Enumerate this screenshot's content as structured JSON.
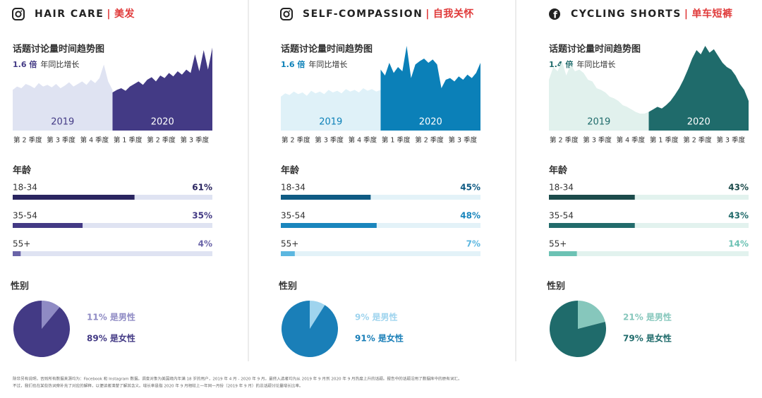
{
  "panels": [
    {
      "title": "HAIR CARE",
      "title_cn": "美发",
      "trend": {
        "type": "area",
        "title": "话题讨论量时间趋势图",
        "growth": "1.6 倍",
        "growth_label": "年同比增长",
        "periods": [
          "2019",
          "2020"
        ],
        "quarters": [
          "第 2 季度",
          "第 3 季度",
          "第 4 季度",
          "第 1 季度",
          "第 2 季度",
          "第 3 季度"
        ],
        "series": [
          {
            "color": "#dfe3f2",
            "values": [
              48,
              52,
              50,
              55,
              53,
              50,
              56,
              52,
              54,
              51,
              55,
              50,
              53,
              57,
              52,
              55,
              58,
              54,
              60,
              56,
              62,
              78,
              58,
              48
            ]
          },
          {
            "color": "#433a85",
            "values": [
              45,
              48,
              50,
              47,
              52,
              55,
              58,
              54,
              60,
              63,
              58,
              65,
              62,
              68,
              64,
              70,
              66,
              72,
              68,
              90,
              70,
              95,
              72,
              98
            ]
          }
        ]
      },
      "age": {
        "type": "bar",
        "title": "年龄",
        "categories": [
          "18-34",
          "35-54",
          "55+"
        ],
        "values": [
          61,
          35,
          4
        ],
        "value_labels": [
          "61%",
          "35%",
          "4%"
        ],
        "colors": [
          "#2a2560",
          "#433a85",
          "#6a64a8"
        ],
        "track": "#dfe3f2"
      },
      "gender": {
        "type": "pie",
        "title": "性别",
        "values": [
          11,
          89
        ],
        "value_labels": [
          "11% 是男性",
          "89% 是女性"
        ],
        "colors": [
          "#8f8bc4",
          "#433a85"
        ]
      }
    },
    {
      "title": "SELF-COMPASSION",
      "title_cn": "自我关怀",
      "trend": {
        "type": "area",
        "title": "话题讨论量时间趋势图",
        "growth": "1.6 倍",
        "growth_label": "年同比增长",
        "periods": [
          "2019",
          "2020"
        ],
        "quarters": [
          "第 2 季度",
          "第 3 季度",
          "第 4 季度",
          "第 1 季度",
          "第 2 季度",
          "第 3 季度"
        ],
        "series": [
          {
            "color": "#dff1f8",
            "values": [
              40,
              44,
              42,
              46,
              43,
              45,
              41,
              47,
              44,
              46,
              43,
              48,
              45,
              47,
              44,
              49,
              46,
              48,
              45,
              50,
              47,
              49,
              46,
              48
            ]
          },
          {
            "color": "#0b80b8",
            "values": [
              72,
              65,
              80,
              68,
              75,
              70,
              100,
              62,
              78,
              82,
              85,
              80,
              84,
              78,
              50,
              60,
              62,
              58,
              64,
              60,
              66,
              62,
              68,
              80
            ]
          }
        ]
      },
      "age": {
        "type": "bar",
        "title": "年龄",
        "categories": [
          "18-34",
          "35-54",
          "55+"
        ],
        "values": [
          45,
          48,
          7
        ],
        "value_labels": [
          "45%",
          "48%",
          "7%"
        ],
        "colors": [
          "#0f5b84",
          "#1a86bd",
          "#5cb7e0"
        ],
        "track": "#e3f2f8"
      },
      "gender": {
        "type": "pie",
        "title": "性别",
        "values": [
          9,
          91
        ],
        "value_labels": [
          "9% 是男性",
          "91% 是女性"
        ],
        "colors": [
          "#9fd4ee",
          "#1a7fb8"
        ]
      }
    },
    {
      "title": "CYCLING SHORTS",
      "title_cn": "单车短裤",
      "trend": {
        "type": "area",
        "title": "话题讨论量时间趋势图",
        "growth": "1.4 倍",
        "growth_label": "年同比增长",
        "periods": [
          "2019",
          "2020"
        ],
        "quarters": [
          "第 2 季度",
          "第 3 季度",
          "第 4 季度",
          "第 1 季度",
          "第 2 季度",
          "第 3 季度"
        ],
        "series": [
          {
            "color": "#e1f1ed",
            "values": [
              60,
              75,
              70,
              82,
              65,
              78,
              70,
              72,
              68,
              60,
              58,
              50,
              48,
              45,
              40,
              38,
              35,
              30,
              28,
              25,
              22,
              20,
              20,
              22
            ]
          },
          {
            "color": "#1f6b6b",
            "values": [
              22,
              25,
              28,
              26,
              30,
              35,
              42,
              50,
              60,
              72,
              85,
              95,
              90,
              100,
              92,
              96,
              88,
              80,
              75,
              72,
              65,
              55,
              48,
              35
            ]
          }
        ]
      },
      "age": {
        "type": "bar",
        "title": "年龄",
        "categories": [
          "18-34",
          "35-54",
          "55+"
        ],
        "values": [
          43,
          43,
          14
        ],
        "value_labels": [
          "43%",
          "43%",
          "14%"
        ],
        "colors": [
          "#1c4b4b",
          "#226b6b",
          "#6cc2b4"
        ],
        "track": "#e2f2ee"
      },
      "gender": {
        "type": "pie",
        "title": "性别",
        "values": [
          21,
          79
        ],
        "value_labels": [
          "21% 是男性",
          "79% 是女性"
        ],
        "colors": [
          "#86c7bc",
          "#1f6b6b"
        ]
      }
    }
  ],
  "footnote": [
    "除非另有说明，否则所有数据来源均为：Facebook 和 Instagram 数据。调查对象为美国境内年满 18 岁的用户，2019 年 4 月 - 2020 年 9 月。最终入选者均为从 2019 年 9 月到 2020 年 9 月热度上升的话题。报告中的话题沿用了数据库中的原有词汇。",
    "不过，我们也在某些热词旁补充了对应的解释，以便读者清楚了解其含义。增长率是指 2020 年 9 月相较上一年同一月份（2019 年 9 月）的总话题讨论量增长比率。"
  ]
}
